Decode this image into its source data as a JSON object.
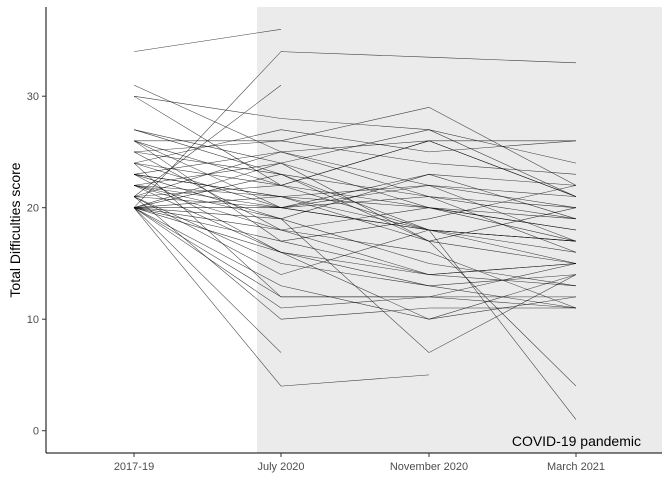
{
  "chart_data": {
    "type": "line",
    "title": "",
    "xlabel": "",
    "ylabel": "Total Difficulties score",
    "categories": [
      "2017-19",
      "July 2020",
      "November 2020",
      "March 2021"
    ],
    "y_ticks": [
      "0",
      "10",
      "20",
      "30"
    ],
    "ylim": [
      -2,
      38
    ],
    "grid": false,
    "shaded_region": {
      "from_after": "2017-19",
      "to": "end",
      "label": "COVID-19 pandemic",
      "color": "#ebebeb"
    },
    "line_color": "#000000",
    "series": [
      {
        "values": [
          34,
          36,
          null,
          null
        ]
      },
      {
        "values": [
          20,
          34,
          33.5,
          33
        ]
      },
      {
        "values": [
          21,
          31,
          null,
          null
        ]
      },
      {
        "values": [
          31,
          25,
          26,
          26
        ]
      },
      {
        "values": [
          30,
          28,
          27,
          21
        ]
      },
      {
        "values": [
          30,
          22,
          20,
          17
        ]
      },
      {
        "values": [
          27,
          24,
          27,
          24
        ]
      },
      {
        "values": [
          27,
          23,
          17,
          15
        ]
      },
      {
        "values": [
          26,
          26,
          29,
          22
        ]
      },
      {
        "values": [
          26,
          22,
          26,
          21
        ]
      },
      {
        "values": [
          26,
          17,
          19,
          22
        ]
      },
      {
        "values": [
          25,
          23,
          21,
          20
        ]
      },
      {
        "values": [
          25,
          18,
          20,
          18
        ]
      },
      {
        "values": [
          24,
          22,
          18,
          17
        ]
      },
      {
        "values": [
          24,
          27,
          25,
          26
        ]
      },
      {
        "values": [
          23,
          21,
          18,
          15
        ]
      },
      {
        "values": [
          23,
          16,
          14,
          15
        ]
      },
      {
        "values": [
          23,
          25,
          22,
          17
        ]
      },
      {
        "values": [
          22,
          21,
          20,
          19
        ]
      },
      {
        "values": [
          22,
          24,
          20,
          18
        ]
      },
      {
        "values": [
          22,
          19,
          23,
          22
        ]
      },
      {
        "values": [
          21,
          20,
          18,
          17
        ]
      },
      {
        "values": [
          21,
          15,
          13,
          14
        ]
      },
      {
        "values": [
          21,
          22,
          26,
          21
        ]
      },
      {
        "values": [
          21,
          10,
          11,
          11
        ]
      },
      {
        "values": [
          20,
          21,
          17,
          20
        ]
      },
      {
        "values": [
          20,
          13,
          10,
          12
        ]
      },
      {
        "values": [
          20,
          18,
          14,
          13
        ]
      },
      {
        "values": [
          20,
          20,
          23,
          19
        ]
      },
      {
        "values": [
          20,
          7,
          null,
          null
        ]
      },
      {
        "values": [
          20,
          4,
          5,
          null
        ]
      },
      {
        "values": [
          20,
          24,
          17,
          4
        ]
      },
      {
        "values": [
          20,
          23,
          18,
          1
        ]
      },
      {
        "values": [
          20,
          19,
          7,
          14
        ]
      },
      {
        "values": [
          20,
          11,
          12,
          15
        ]
      },
      {
        "values": [
          20,
          17,
          14,
          15
        ]
      },
      {
        "values": [
          21,
          25,
          21,
          19
        ]
      },
      {
        "values": [
          22,
          18,
          16,
          11
        ]
      },
      {
        "values": [
          23,
          21,
          22,
          20
        ]
      },
      {
        "values": [
          24,
          20,
          22,
          21
        ]
      },
      {
        "values": [
          25,
          26,
          24,
          23
        ]
      },
      {
        "values": [
          26,
          20,
          18,
          16
        ]
      },
      {
        "values": [
          22,
          16,
          13,
          11
        ]
      },
      {
        "values": [
          21,
          14,
          18,
          17
        ]
      },
      {
        "values": [
          20,
          12,
          12,
          11
        ]
      },
      {
        "values": [
          23,
          19,
          15,
          13
        ]
      },
      {
        "values": [
          20,
          16,
          10,
          14
        ]
      },
      {
        "values": [
          24,
          12,
          12,
          12
        ]
      },
      {
        "values": [
          22,
          20,
          21,
          16
        ]
      }
    ]
  }
}
